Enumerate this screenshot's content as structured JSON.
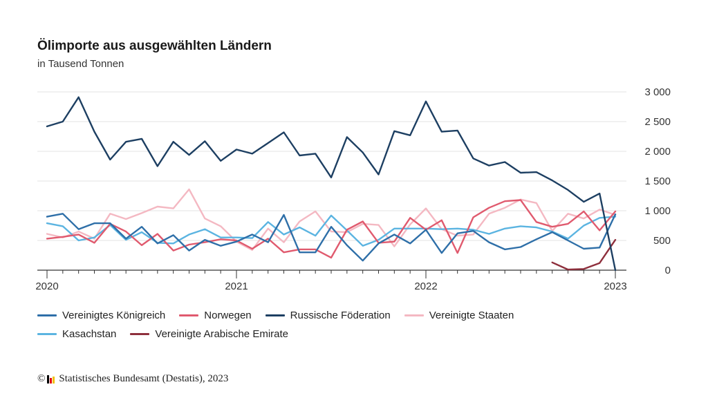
{
  "title": "Ölimporte aus ausgewählten Ländern",
  "subtitle": "in Tausend Tonnen",
  "source": {
    "symbol": "©",
    "text": "Statistisches Bundesamt (Destatis), 2023",
    "logo_colors": [
      "#000000",
      "#e30613",
      "#f0c000"
    ]
  },
  "chart_data": {
    "type": "line",
    "x_start": "2020-01",
    "x_end": "2023-01",
    "x_ticks": [
      {
        "label": "2020",
        "index": 0
      },
      {
        "label": "2021",
        "index": 12
      },
      {
        "label": "2022",
        "index": 24
      },
      {
        "label": "2023",
        "index": 36
      }
    ],
    "y_ticks": [
      {
        "value": 0,
        "label": "0"
      },
      {
        "value": 500,
        "label": "500"
      },
      {
        "value": 1000,
        "label": "1 000"
      },
      {
        "value": 1500,
        "label": "1 500"
      },
      {
        "value": 2000,
        "label": "2 000"
      },
      {
        "value": 2500,
        "label": "2 500"
      },
      {
        "value": 3000,
        "label": "3 000"
      }
    ],
    "ylim": [
      0,
      3000
    ],
    "y_axis_side": "right",
    "grid": true,
    "legend_position": "bottom",
    "series": [
      {
        "name": "Vereinigtes Königreich",
        "color": "#2e6fa8",
        "values": [
          900,
          950,
          690,
          790,
          790,
          530,
          730,
          450,
          590,
          330,
          510,
          410,
          480,
          600,
          470,
          930,
          300,
          300,
          730,
          420,
          160,
          450,
          600,
          450,
          680,
          290,
          620,
          660,
          470,
          350,
          390,
          520,
          640,
          500,
          360,
          380,
          940
        ]
      },
      {
        "name": "Norwegen",
        "color": "#e05a6e",
        "values": [
          530,
          560,
          600,
          460,
          780,
          650,
          420,
          610,
          330,
          430,
          470,
          520,
          500,
          360,
          530,
          300,
          350,
          350,
          210,
          680,
          820,
          460,
          480,
          880,
          680,
          840,
          290,
          890,
          1050,
          1160,
          1180,
          810,
          730,
          780,
          990,
          670,
          990
        ]
      },
      {
        "name": "Russische Föderation",
        "color": "#1d3f62",
        "values": [
          2420,
          2500,
          2910,
          2330,
          1860,
          2160,
          2210,
          1750,
          2160,
          1940,
          2170,
          1840,
          2030,
          1960,
          2140,
          2320,
          1930,
          1960,
          1560,
          2240,
          1980,
          1610,
          2340,
          2270,
          2840,
          2330,
          2350,
          1880,
          1760,
          1820,
          1640,
          1650,
          1510,
          1350,
          1150,
          1290,
          0
        ]
      },
      {
        "name": "Vereinigte Staaten",
        "color": "#f4b8c2",
        "values": [
          610,
          550,
          650,
          530,
          950,
          860,
          960,
          1070,
          1040,
          1360,
          870,
          740,
          480,
          340,
          700,
          470,
          820,
          990,
          650,
          640,
          780,
          760,
          400,
          770,
          1040,
          690,
          580,
          600,
          950,
          1050,
          1190,
          1130,
          660,
          950,
          870,
          1020,
          930
        ]
      },
      {
        "name": "Kasachstan",
        "color": "#5bb4e1",
        "values": [
          790,
          740,
          500,
          550,
          760,
          510,
          640,
          460,
          450,
          600,
          690,
          550,
          550,
          540,
          810,
          600,
          720,
          580,
          920,
          670,
          410,
          510,
          700,
          700,
          700,
          690,
          700,
          680,
          610,
          700,
          740,
          720,
          650,
          530,
          750,
          880,
          900
        ]
      },
      {
        "name": "Vereinigte Arabische Emirate",
        "color": "#8e2f3c",
        "values": [
          null,
          null,
          null,
          null,
          null,
          null,
          null,
          null,
          null,
          null,
          null,
          null,
          null,
          null,
          null,
          null,
          null,
          null,
          null,
          null,
          null,
          null,
          null,
          null,
          null,
          null,
          null,
          null,
          null,
          null,
          null,
          null,
          130,
          10,
          20,
          120,
          510
        ]
      }
    ]
  }
}
